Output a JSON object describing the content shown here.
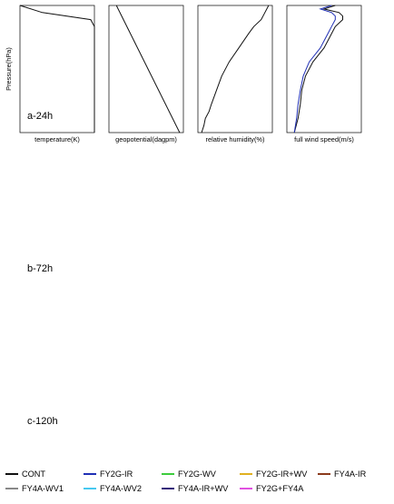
{
  "figure": {
    "xlabels": [
      "temperature(K)",
      "geopotential(dagpm)",
      "relative humidity(%)",
      "full wind speed(m/s)"
    ],
    "ylabel": "Pressure(hPa)",
    "rows": [
      "a-24h",
      "b-72h",
      "c-120h"
    ]
  },
  "legend": [
    {
      "name": "CONT",
      "color": "#111111"
    },
    {
      "name": "FY2G-IR",
      "color": "#1f2fb5"
    },
    {
      "name": "FY2G-WV",
      "color": "#3ccc3c"
    },
    {
      "name": "FY2G-IR+WV",
      "color": "#e0b020"
    },
    {
      "name": "FY4A-IR",
      "color": "#8b3a1c"
    },
    {
      "name": "FY4A-WV1",
      "color": "#888888"
    },
    {
      "name": "FY4A-WV2",
      "color": "#46c8f0"
    },
    {
      "name": "FY4A-IR+WV",
      "color": "#33207a"
    },
    {
      "name": "FY2G+FY4A",
      "color": "#e050e0"
    }
  ],
  "chart_data": [
    {
      "type": "line",
      "panel": "a-24h temperature",
      "xlabel": "temperature(K)",
      "ylabel": "Pressure(hPa)",
      "ylim": [
        1000,
        100
      ],
      "y": [
        100,
        150,
        200,
        250,
        300,
        400,
        500,
        600,
        700,
        800,
        850,
        900,
        925,
        950,
        975,
        1000
      ],
      "series": [
        {
          "name": "CONT",
          "x": [
            0.0,
            0.3,
            0.95,
            1.45,
            1.55,
            1.45,
            1.35,
            1.25,
            1.2,
            1.15,
            1.05,
            1.1,
            1.2,
            1.3,
            1.25,
            1.15
          ]
        }
      ]
    },
    {
      "type": "line",
      "panel": "a-24h geopotential",
      "xlabel": "geopotential(dagpm)",
      "ylabel": "Pressure(hPa)",
      "ylim": [
        1000,
        100
      ],
      "y": [
        100,
        1000
      ],
      "series": [
        {
          "name": "CONT",
          "x": [
            0.1,
            0.95
          ]
        }
      ]
    },
    {
      "type": "line",
      "panel": "a-24h relative humidity",
      "xlabel": "relative humidity(%)",
      "ylabel": "Pressure(hPa)",
      "ylim": [
        1000,
        100
      ],
      "y": [
        100,
        150,
        200,
        250,
        300,
        400,
        500,
        600,
        700,
        800,
        850,
        900,
        950,
        1000
      ],
      "series": [
        {
          "name": "CONT",
          "x": [
            0.95,
            0.9,
            0.85,
            0.75,
            0.68,
            0.55,
            0.42,
            0.32,
            0.25,
            0.18,
            0.15,
            0.1,
            0.08,
            0.05
          ]
        }
      ]
    },
    {
      "type": "line",
      "panel": "a-24h full wind speed",
      "xlabel": "full wind speed(m/s)",
      "ylabel": "Pressure(hPa)",
      "ylim": [
        1000,
        100
      ],
      "y": [
        100,
        125,
        150,
        175,
        200,
        250,
        300,
        400,
        500,
        600,
        700,
        800,
        900,
        1000
      ],
      "series": [
        {
          "name": "CONT",
          "x": [
            0.65,
            0.5,
            0.7,
            0.75,
            0.75,
            0.65,
            0.6,
            0.5,
            0.35,
            0.25,
            0.2,
            0.18,
            0.15,
            0.1
          ]
        },
        {
          "name": "FY2G-IR",
          "x": [
            0.6,
            0.45,
            0.6,
            0.65,
            0.65,
            0.6,
            0.55,
            0.45,
            0.3,
            0.22,
            0.18,
            0.15,
            0.13,
            0.1
          ]
        }
      ]
    }
  ]
}
